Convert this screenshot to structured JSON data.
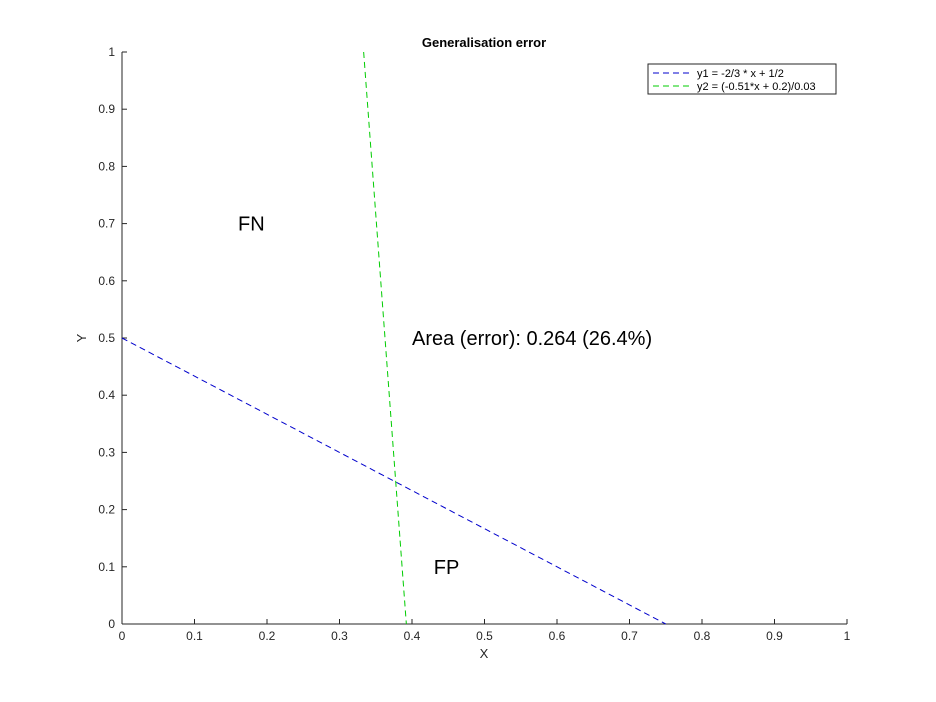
{
  "chart_data": {
    "type": "line",
    "title": "Generalisation error",
    "xlabel": "X",
    "ylabel": "Y",
    "xlim": [
      0,
      1
    ],
    "ylim": [
      0,
      1
    ],
    "xticks": [
      "0",
      "0.1",
      "0.2",
      "0.3",
      "0.4",
      "0.5",
      "0.6",
      "0.7",
      "0.8",
      "0.9",
      "1"
    ],
    "yticks": [
      "0",
      "0.1",
      "0.2",
      "0.3",
      "0.4",
      "0.5",
      "0.6",
      "0.7",
      "0.8",
      "0.9",
      "1"
    ],
    "grid": false,
    "legend_position": "top-right",
    "series": [
      {
        "name": "y1 = -2/3 * x + 1/2",
        "x": [
          0,
          0.75
        ],
        "y": [
          0.5,
          0
        ],
        "color": "#0000cc",
        "style": "dashed"
      },
      {
        "name": "y2 = (-0.51*x + 0.2)/0.03",
        "x": [
          0.3333,
          0.3922
        ],
        "y": [
          1,
          0
        ],
        "color": "#00cc00",
        "style": "dashed"
      }
    ],
    "annotations": [
      {
        "text": "FN",
        "x": 0.16,
        "y": 0.7
      },
      {
        "text": "Area (error): 0.264 (26.4%)",
        "x": 0.4,
        "y": 0.5
      },
      {
        "text": "FP",
        "x": 0.43,
        "y": 0.1
      }
    ]
  }
}
